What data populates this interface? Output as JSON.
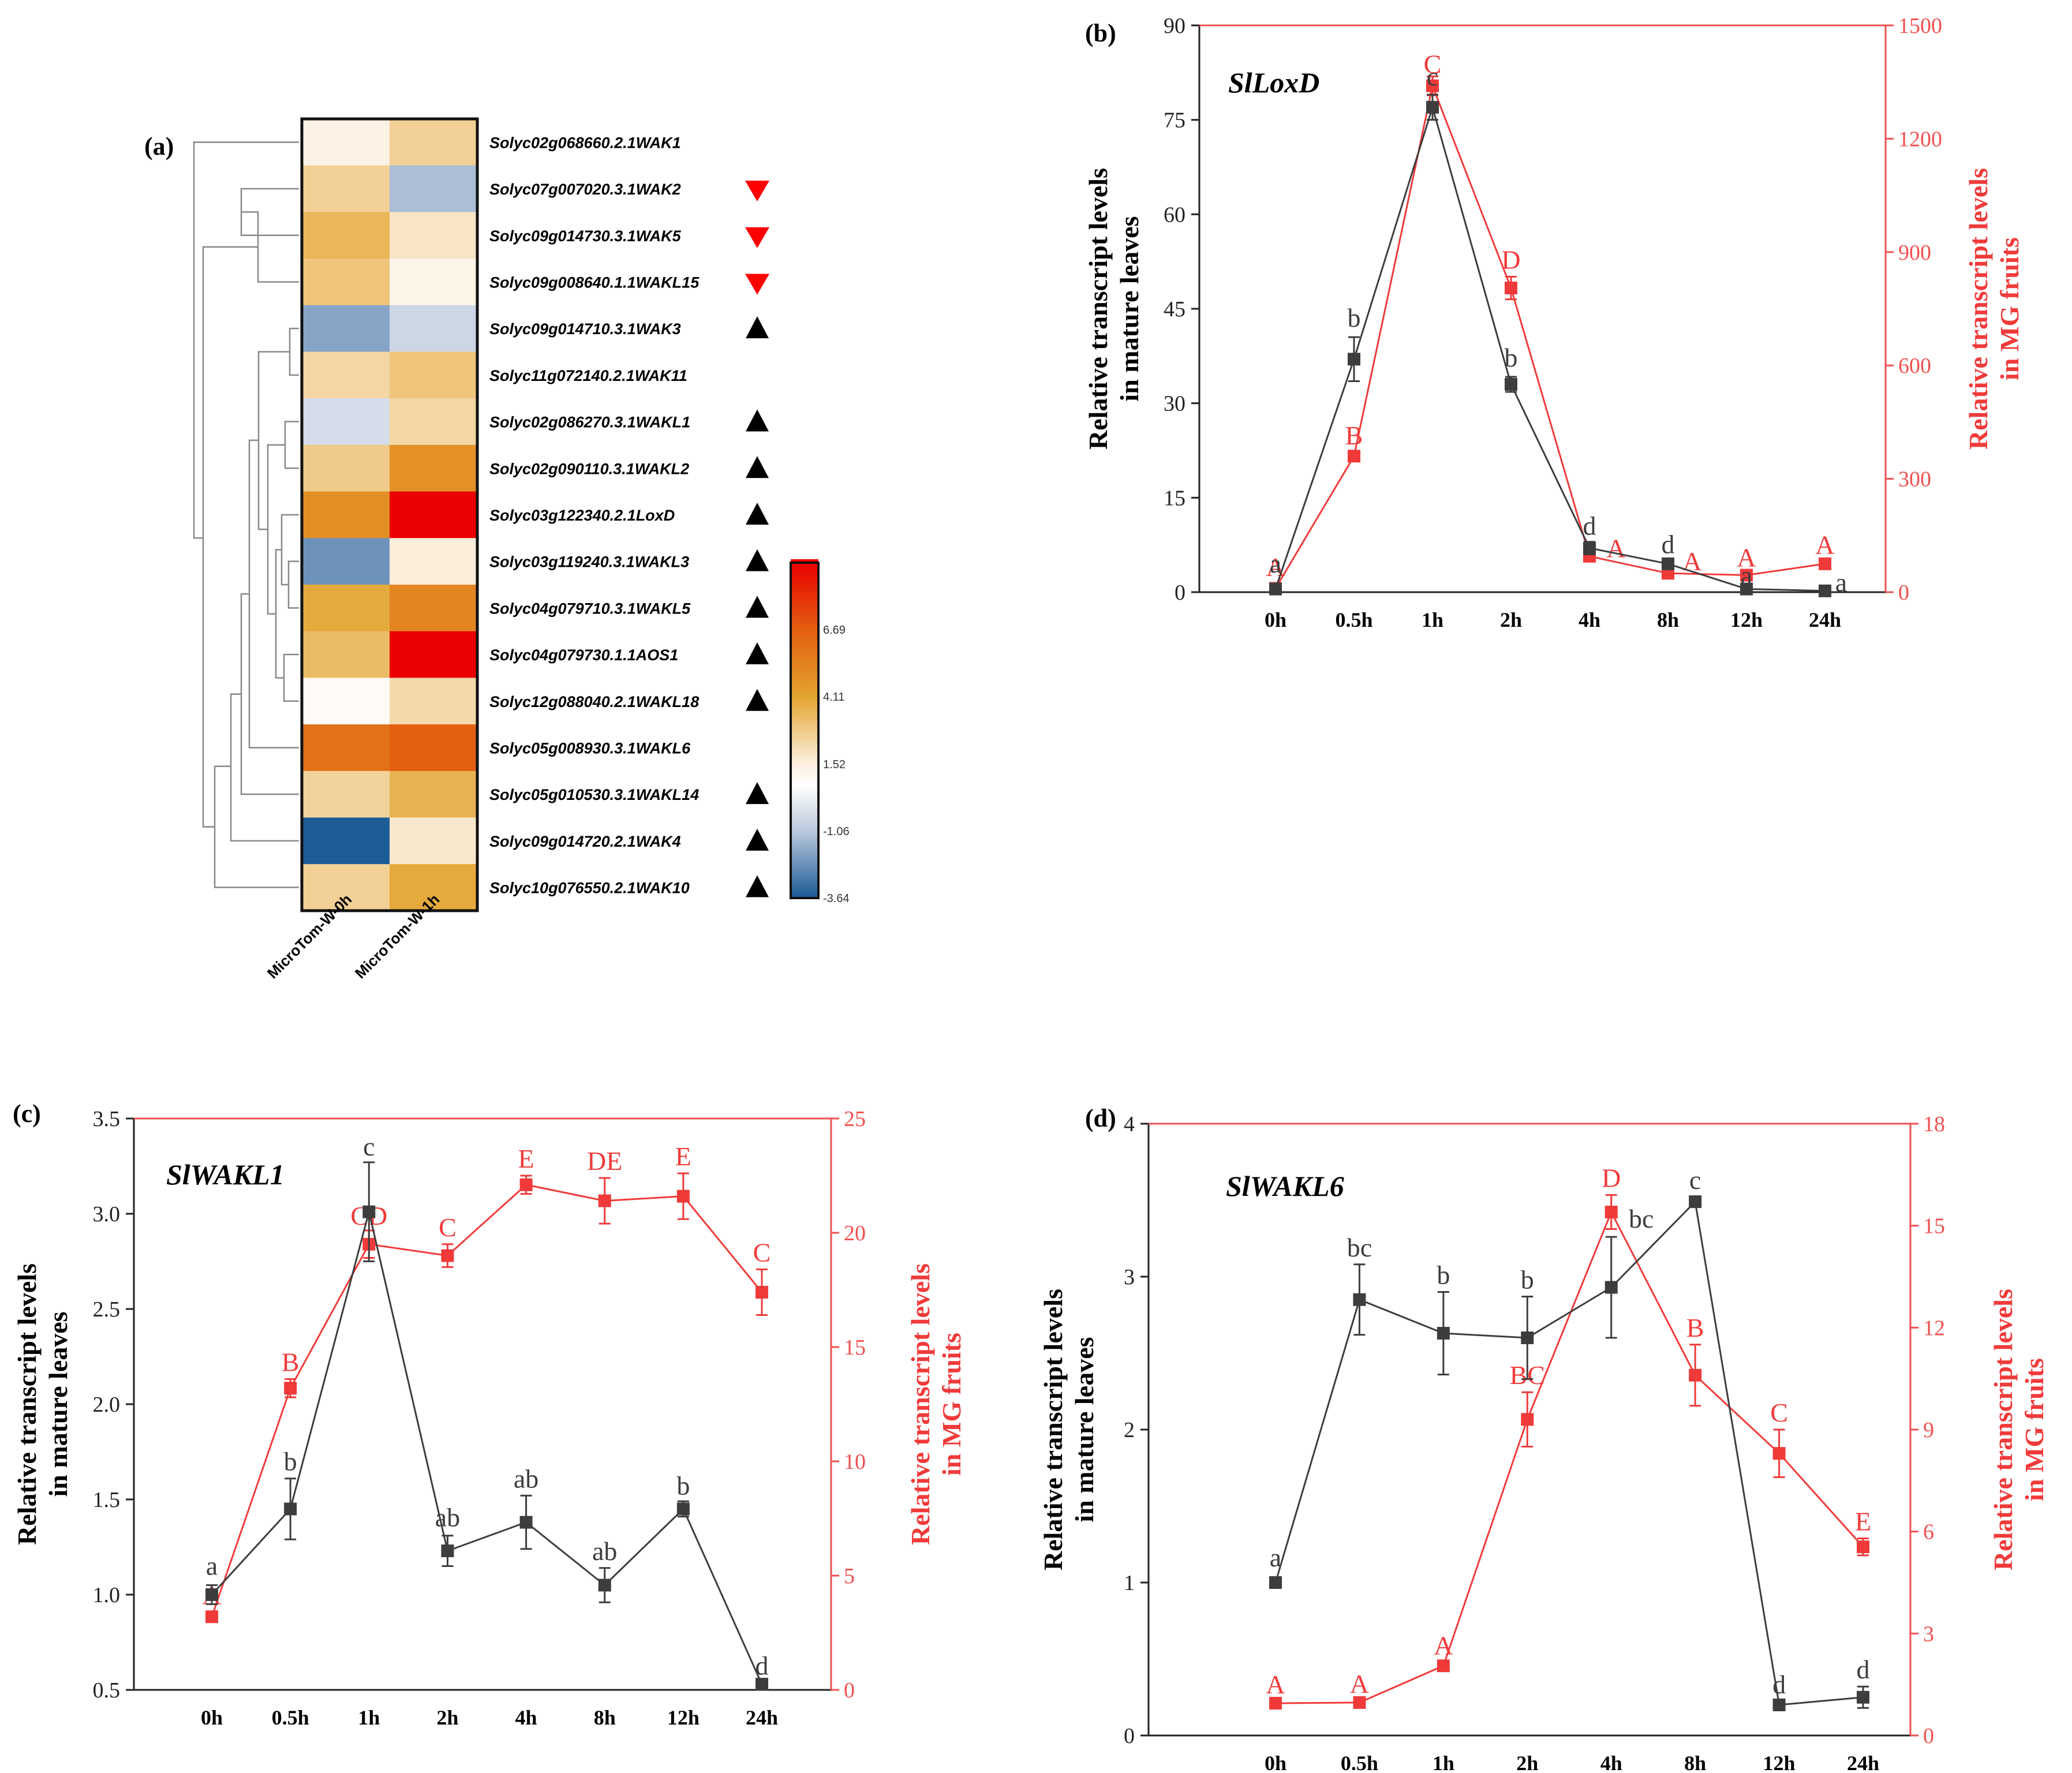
{
  "colors": {
    "black_series": "#3d3d3d",
    "red_series": "#f03a3a",
    "red_axis": "#f05050",
    "up_triangle": "#000000",
    "down_triangle": "#ff0000"
  },
  "chart_data": [
    {
      "panel_label": "(a)",
      "type": "heatmap",
      "columns": [
        "MicroTom-W-0h",
        "MicroTom-W-1h"
      ],
      "rows": [
        {
          "gene": "Solyc02g068660.2.1WAK1",
          "values": [
            1.4,
            2.6
          ],
          "marker": ""
        },
        {
          "gene": "Solyc07g007020.3.1WAK2",
          "values": [
            2.6,
            -1.3
          ],
          "marker": "down"
        },
        {
          "gene": "Solyc09g014730.3.1WAK5",
          "values": [
            3.5,
            1.9
          ],
          "marker": "down"
        },
        {
          "gene": "Solyc09g008640.1.1WAKL15",
          "values": [
            3.0,
            1.3
          ],
          "marker": "down"
        },
        {
          "gene": "Solyc09g014710.3.1WAK3",
          "values": [
            -1.9,
            -0.6
          ],
          "marker": "up"
        },
        {
          "gene": "Solyc11g072140.2.1WAK11",
          "values": [
            2.4,
            3.0
          ],
          "marker": ""
        },
        {
          "gene": "Solyc02g086270.3.1WAKL1",
          "values": [
            -0.4,
            2.4
          ],
          "marker": "up"
        },
        {
          "gene": "Solyc02g090110.3.1WAKL2",
          "values": [
            2.8,
            4.8
          ],
          "marker": "up"
        },
        {
          "gene": "Solyc03g122340.2.1LoxD",
          "values": [
            4.9,
            9.4
          ],
          "marker": "up"
        },
        {
          "gene": "Solyc03g119240.3.1WAKL3",
          "values": [
            -2.3,
            1.6
          ],
          "marker": "up"
        },
        {
          "gene": "Solyc04g079710.3.1WAKL5",
          "values": [
            3.9,
            5.2
          ],
          "marker": "up"
        },
        {
          "gene": "Solyc04g079730.1.1AOS1",
          "values": [
            3.3,
            9.3
          ],
          "marker": "up"
        },
        {
          "gene": "Solyc12g088040.2.1WAKL18",
          "values": [
            0.9,
            2.3
          ],
          "marker": "up"
        },
        {
          "gene": "Solyc05g008930.3.1WAKL6",
          "values": [
            6.0,
            6.6
          ],
          "marker": ""
        },
        {
          "gene": "Solyc05g010530.3.1WAKL14",
          "values": [
            2.5,
            3.6
          ],
          "marker": "up"
        },
        {
          "gene": "Solyc09g014720.2.1WAK4",
          "values": [
            -3.6,
            1.8
          ],
          "marker": "up"
        },
        {
          "gene": "Solyc10g076550.2.1WAK10",
          "values": [
            2.6,
            3.9
          ],
          "marker": "up"
        }
      ],
      "colorbar_ticks": [
        "6.69",
        "4.11",
        "1.52",
        "-1.06",
        "-3.64"
      ],
      "range": [
        -3.64,
        9.27
      ],
      "colorscale": [
        [
          -3.64,
          "#1a5a96"
        ],
        [
          -1.06,
          "#bac8dc"
        ],
        [
          0.7,
          "#ffffff"
        ],
        [
          1.52,
          "#fcf0e0"
        ],
        [
          4.11,
          "#e3a42f"
        ],
        [
          6.69,
          "#e35e10"
        ],
        [
          9.27,
          "#ea0000"
        ]
      ]
    },
    {
      "panel_label": "(b)",
      "type": "line",
      "title": "SlLoxD",
      "categories": [
        "0h",
        "0.5h",
        "1h",
        "2h",
        "4h",
        "8h",
        "12h",
        "24h"
      ],
      "ylabel": [
        "Relative transcript levels",
        "in mature leaves"
      ],
      "y2label": [
        "Relative transcript levels",
        "in MG fruits"
      ],
      "ylim": [
        0,
        90
      ],
      "yticks": [
        "0",
        "15",
        "30",
        "45",
        "60",
        "75",
        "90"
      ],
      "y2lim": [
        0,
        1500
      ],
      "y2ticks": [
        "0",
        "300",
        "600",
        "900",
        "1200",
        "1500"
      ],
      "series": [
        {
          "name": "mature leaves",
          "axis": "left",
          "color": "black",
          "values": [
            0.5,
            37,
            77,
            33,
            7,
            4.5,
            0.5,
            0.2
          ],
          "errors": [
            0.4,
            3.5,
            2,
            1.2,
            1,
            0.6,
            0.2,
            0.1
          ],
          "letters": [
            "a",
            "b",
            "c",
            "b",
            "d",
            "d",
            "a",
            "a"
          ]
        },
        {
          "name": "MG fruits",
          "axis": "right",
          "color": "red",
          "values": [
            10,
            360,
            1340,
            805,
            95,
            50,
            45,
            75
          ],
          "errors": [
            5,
            10,
            25,
            30,
            10,
            5,
            5,
            5
          ],
          "letters": [
            "A",
            "B",
            "C",
            "D",
            "A",
            "A",
            "A",
            "A"
          ]
        }
      ]
    },
    {
      "panel_label": "(c)",
      "type": "line",
      "title": "SlWAKL1",
      "categories": [
        "0h",
        "0.5h",
        "1h",
        "2h",
        "4h",
        "8h",
        "12h",
        "24h"
      ],
      "ylabel": [
        "Relative transcript levels",
        "in mature leaves"
      ],
      "y2label": [
        "Relative transcript levels",
        "in MG fruits"
      ],
      "ylim": [
        0.5,
        3.5
      ],
      "yticks": [
        "0.5",
        "1.0",
        "1.5",
        "2.0",
        "2.5",
        "3.0",
        "3.5"
      ],
      "y2lim": [
        0,
        25
      ],
      "y2ticks": [
        "0",
        "5",
        "10",
        "15",
        "20",
        "25"
      ],
      "ytick_values": [
        0.5,
        1.0,
        1.5,
        2.0,
        2.5,
        3.0,
        3.5
      ],
      "series": [
        {
          "name": "mature leaves",
          "axis": "left",
          "color": "black",
          "values": [
            1.0,
            1.45,
            3.01,
            1.23,
            1.38,
            1.05,
            1.45,
            0.53
          ],
          "errors": [
            0.05,
            0.16,
            0.26,
            0.08,
            0.14,
            0.09,
            0.04,
            0.02
          ],
          "letters": [
            "a",
            "b",
            "c",
            "ab",
            "ab",
            "ab",
            "b",
            "d"
          ]
        },
        {
          "name": "MG fruits",
          "axis": "right",
          "color": "red",
          "values": [
            3.2,
            13.2,
            19.5,
            19.0,
            22.1,
            21.4,
            21.6,
            17.4
          ],
          "errors": [
            0.2,
            0.4,
            0.6,
            0.5,
            0.4,
            1.0,
            1.0,
            1.0
          ],
          "letters": [
            "A",
            "B",
            "CD",
            "C",
            "E",
            "DE",
            "E",
            "C"
          ]
        }
      ]
    },
    {
      "panel_label": "(d)",
      "type": "line",
      "title": "SlWAKL6",
      "categories": [
        "0h",
        "0.5h",
        "1h",
        "2h",
        "4h",
        "8h",
        "12h",
        "24h"
      ],
      "ylabel": [
        "Relative transcript levels",
        "in mature leaves"
      ],
      "y2label": [
        "Relative transcript levels",
        "in MG fruits"
      ],
      "ylim": [
        0,
        4
      ],
      "yticks": [
        "0",
        "1",
        "2",
        "3",
        "4"
      ],
      "y2lim": [
        0,
        18
      ],
      "y2ticks": [
        "0",
        "3",
        "6",
        "9",
        "12",
        "15",
        "18"
      ],
      "series": [
        {
          "name": "mature leaves",
          "axis": "left",
          "color": "black",
          "values": [
            1.0,
            2.85,
            2.63,
            2.6,
            2.93,
            3.49,
            0.2,
            0.25
          ],
          "errors": [
            0.03,
            0.23,
            0.27,
            0.27,
            0.33,
            0.03,
            0.03,
            0.07
          ],
          "letters": [
            "a",
            "bc",
            "b",
            "b",
            "bc",
            "c",
            "d",
            "d"
          ]
        },
        {
          "name": "MG fruits",
          "axis": "right",
          "color": "red",
          "values": [
            0.95,
            0.97,
            2.05,
            9.3,
            15.4,
            10.6,
            8.3,
            5.55
          ],
          "errors": [
            0.05,
            0.05,
            0.1,
            0.8,
            0.5,
            0.9,
            0.7,
            0.25
          ],
          "letters": [
            "A",
            "A",
            "A",
            "BC",
            "D",
            "B",
            "C",
            "E"
          ]
        }
      ]
    }
  ]
}
